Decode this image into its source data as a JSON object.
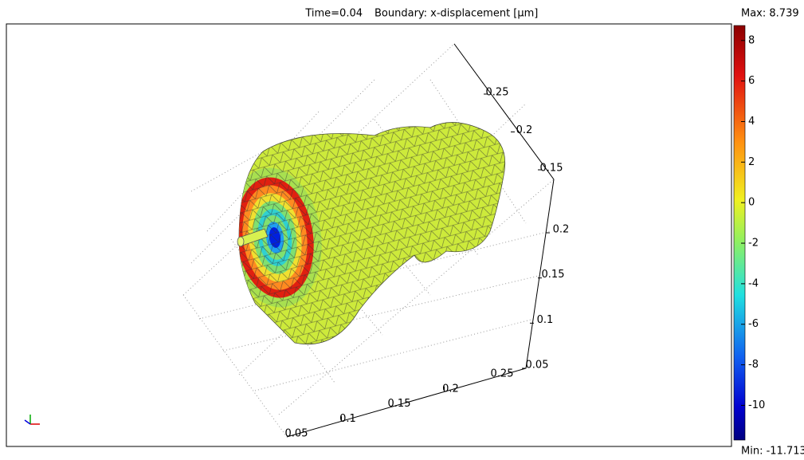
{
  "title": {
    "time": "Time=0.04",
    "quantity": "Boundary: x-displacement [µm]"
  },
  "colorbar": {
    "max_label": "Max: 8.739",
    "min_label": "Min: -11.713",
    "max": 8.739,
    "min": -11.713,
    "ticks": [
      8,
      6,
      4,
      2,
      0,
      -2,
      -4,
      -6,
      -8,
      -10
    ]
  },
  "axes": {
    "x_ticks": [
      0.05,
      0.1,
      0.15,
      0.2,
      0.25
    ],
    "z_ticks": [
      0.05,
      0.1,
      0.15,
      0.2
    ],
    "y_ticks": [
      0.15,
      0.2,
      0.25
    ]
  }
}
